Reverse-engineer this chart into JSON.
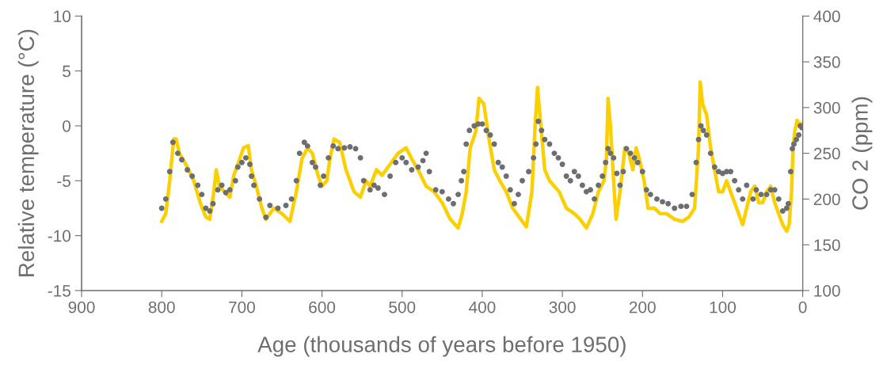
{
  "chart_data": {
    "type": "line",
    "xlabel": "Age (thousands of years before 1950)",
    "ylabel": "Relative temperature (°C)",
    "y2label": "CO 2 (ppm)",
    "xlim": [
      900,
      0
    ],
    "xticks": [
      900,
      800,
      700,
      600,
      500,
      400,
      300,
      200,
      100,
      0
    ],
    "ylim": [
      -15,
      10
    ],
    "yticks": [
      -15,
      -10,
      -5,
      0,
      5,
      10
    ],
    "y2lim": [
      100,
      400
    ],
    "y2ticks": [
      100,
      150,
      200,
      250,
      300,
      350,
      400
    ],
    "grid": false,
    "legend": false,
    "series": [
      {
        "color": "#fcd000",
        "x": [
          800,
          795,
          790,
          785,
          782,
          778,
          770,
          760,
          752,
          745,
          740,
          735,
          732,
          728,
          722,
          715,
          710,
          705,
          698,
          692,
          688,
          682,
          675,
          670,
          660,
          650,
          640,
          632,
          625,
          618,
          612,
          605,
          600,
          594,
          590,
          585,
          578,
          570,
          560,
          552,
          545,
          540,
          532,
          525,
          515,
          505,
          495,
          488,
          480,
          470,
          460,
          450,
          440,
          430,
          425,
          420,
          415,
          408,
          404,
          398,
          392,
          385,
          378,
          370,
          362,
          352,
          345,
          338,
          334,
          331,
          328,
          322,
          316,
          310,
          304,
          295,
          285,
          278,
          270,
          262,
          255,
          248,
          245,
          243,
          240,
          236,
          233,
          228,
          222,
          217,
          212,
          208,
          204,
          198,
          193,
          185,
          178,
          170,
          160,
          150,
          142,
          135,
          130,
          128,
          125,
          120,
          115,
          110,
          105,
          100,
          95,
          90,
          85,
          80,
          75,
          70,
          65,
          60,
          55,
          50,
          45,
          40,
          35,
          30,
          25,
          20,
          17,
          14,
          12,
          10,
          7,
          4,
          2
        ],
        "values": [
          -8.7,
          -8,
          -5,
          -1.2,
          -1.2,
          -2.5,
          -3.5,
          -5,
          -7,
          -8.3,
          -8.5,
          -6,
          -4,
          -5.5,
          -6,
          -6.5,
          -4.5,
          -3.5,
          -2,
          -1.8,
          -4,
          -5.5,
          -7.5,
          -8.5,
          -7.5,
          -8,
          -8.7,
          -6,
          -3,
          -2,
          -2.5,
          -4.5,
          -5.5,
          -5,
          -3,
          -1.2,
          -1.5,
          -4,
          -6,
          -6.5,
          -5,
          -5.5,
          -4,
          -4.5,
          -3.5,
          -2.5,
          -2,
          -3,
          -4,
          -5.5,
          -6,
          -7,
          -8.5,
          -9.3,
          -8,
          -6,
          -2,
          -0.5,
          2.5,
          2,
          -1,
          -4,
          -5,
          -6,
          -7.5,
          -8.5,
          -9.2,
          -6,
          0,
          3.5,
          1,
          -4,
          -5,
          -5.5,
          -6,
          -7.5,
          -8,
          -8.5,
          -9.3,
          -8,
          -6,
          -5,
          -3,
          2.5,
          0,
          -5,
          -8.5,
          -6,
          -2,
          -2.5,
          -4,
          -2,
          -3,
          -5,
          -7.5,
          -7.5,
          -8,
          -8,
          -8.5,
          -8.7,
          -8.3,
          -7.5,
          -2,
          4,
          2,
          1,
          -2,
          -4,
          -6,
          -6,
          -5,
          -6,
          -7,
          -8,
          -9,
          -7.5,
          -6,
          -5.5,
          -7,
          -7,
          -6,
          -5.5,
          -7,
          -8,
          -9,
          -9.6,
          -9,
          -6,
          -2,
          -0.5,
          0.5,
          0,
          0.2
        ]
      },
      {
        "type": "scatter",
        "axis": "y2",
        "color": "#6d6e71",
        "marker": "circle",
        "x": [
          800,
          795,
          790,
          786,
          780,
          775,
          768,
          762,
          755,
          750,
          745,
          740,
          736,
          730,
          725,
          720,
          715,
          708,
          705,
          700,
          695,
          690,
          688,
          685,
          678,
          670,
          665,
          655,
          645,
          638,
          632,
          628,
          622,
          618,
          612,
          608,
          602,
          598,
          592,
          586,
          580,
          572,
          565,
          558,
          552,
          548,
          540,
          535,
          530,
          522,
          515,
          508,
          500,
          495,
          488,
          480,
          474,
          470,
          466,
          458,
          450,
          442,
          436,
          430,
          426,
          423,
          420,
          416,
          410,
          405,
          400,
          395,
          390,
          385,
          380,
          375,
          370,
          365,
          360,
          355,
          350,
          342,
          336,
          333,
          330,
          326,
          322,
          316,
          310,
          305,
          300,
          295,
          290,
          285,
          280,
          275,
          270,
          265,
          260,
          255,
          250,
          246,
          243,
          240,
          236,
          232,
          228,
          224,
          220,
          215,
          210,
          206,
          200,
          195,
          190,
          182,
          175,
          168,
          160,
          152,
          145,
          138,
          133,
          130,
          127,
          124,
          120,
          115,
          110,
          105,
          100,
          95,
          90,
          85,
          80,
          75,
          70,
          62,
          58,
          52,
          45,
          40,
          35,
          30,
          25,
          20,
          18,
          15,
          13,
          11,
          8,
          5,
          3,
          1
        ],
        "values": [
          190,
          200,
          230,
          262,
          250,
          243,
          232,
          225,
          215,
          205,
          190,
          187,
          195,
          210,
          215,
          207,
          210,
          220,
          235,
          240,
          245,
          238,
          225,
          215,
          200,
          180,
          193,
          190,
          193,
          200,
          220,
          250,
          262,
          258,
          240,
          235,
          215,
          225,
          245,
          258,
          255,
          256,
          257,
          255,
          245,
          220,
          210,
          215,
          212,
          205,
          225,
          240,
          245,
          240,
          232,
          235,
          242,
          250,
          230,
          210,
          208,
          200,
          195,
          205,
          220,
          230,
          260,
          275,
          280,
          282,
          282,
          275,
          270,
          260,
          240,
          235,
          225,
          210,
          195,
          205,
          220,
          230,
          245,
          260,
          285,
          275,
          265,
          260,
          250,
          245,
          238,
          225,
          220,
          230,
          225,
          215,
          208,
          210,
          200,
          215,
          225,
          240,
          255,
          250,
          245,
          228,
          215,
          230,
          255,
          250,
          245,
          240,
          230,
          210,
          205,
          200,
          197,
          195,
          190,
          192,
          192,
          205,
          240,
          265,
          280,
          275,
          270,
          250,
          235,
          230,
          228,
          230,
          230,
          220,
          210,
          200,
          215,
          200,
          210,
          205,
          205,
          210,
          210,
          200,
          187,
          190,
          195,
          230,
          255,
          260,
          265,
          270,
          280,
          278
        ]
      }
    ]
  }
}
